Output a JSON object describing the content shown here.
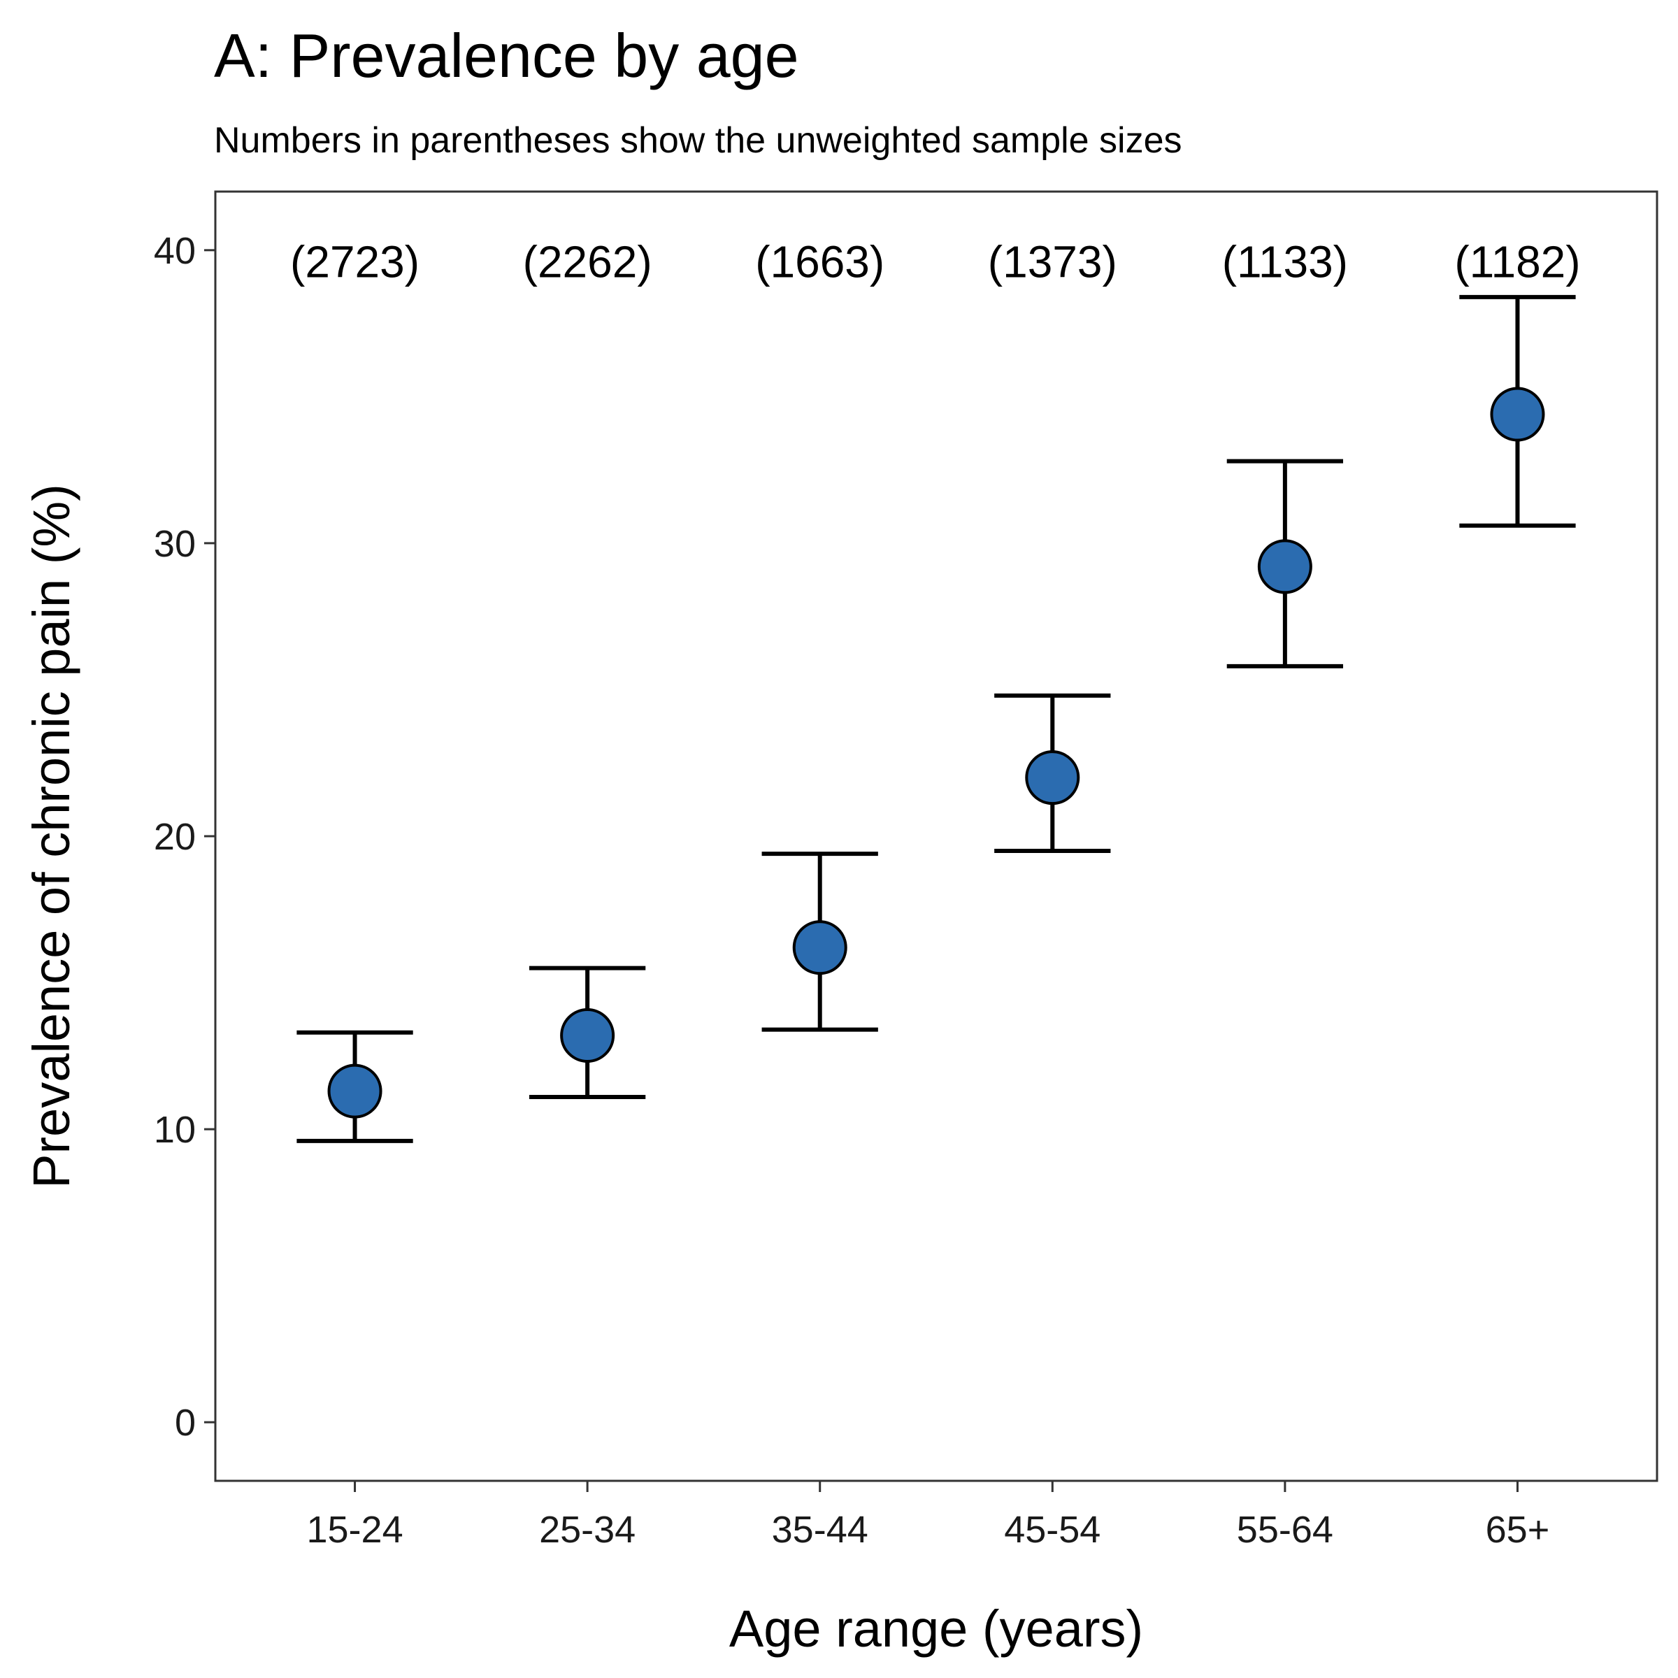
{
  "chart_data": {
    "type": "scatter",
    "title": "A: Prevalence by age",
    "subtitle": "Numbers in parentheses show the unweighted sample sizes",
    "xlabel": "Age range (years)",
    "ylabel": "Prevalence of chronic pain (%)",
    "categories": [
      "15-24",
      "25-34",
      "35-44",
      "45-54",
      "55-64",
      "65+"
    ],
    "values": [
      11.3,
      13.2,
      16.2,
      22.0,
      29.2,
      34.4
    ],
    "lower": [
      9.6,
      11.1,
      13.4,
      19.5,
      25.8,
      30.6
    ],
    "upper": [
      13.3,
      15.5,
      19.4,
      24.8,
      32.8,
      38.4
    ],
    "sample_size_labels": [
      "(2723)",
      "(2262)",
      "(1663)",
      "(1373)",
      "(1133)",
      "(1182)"
    ],
    "sample_size_label_y": 39.6,
    "y_ticks": [
      0,
      10,
      20,
      30,
      40
    ],
    "ylim": [
      -2,
      42
    ],
    "grid": false,
    "point_color": "#2b6cb0",
    "errorbar_color": "#000000"
  }
}
